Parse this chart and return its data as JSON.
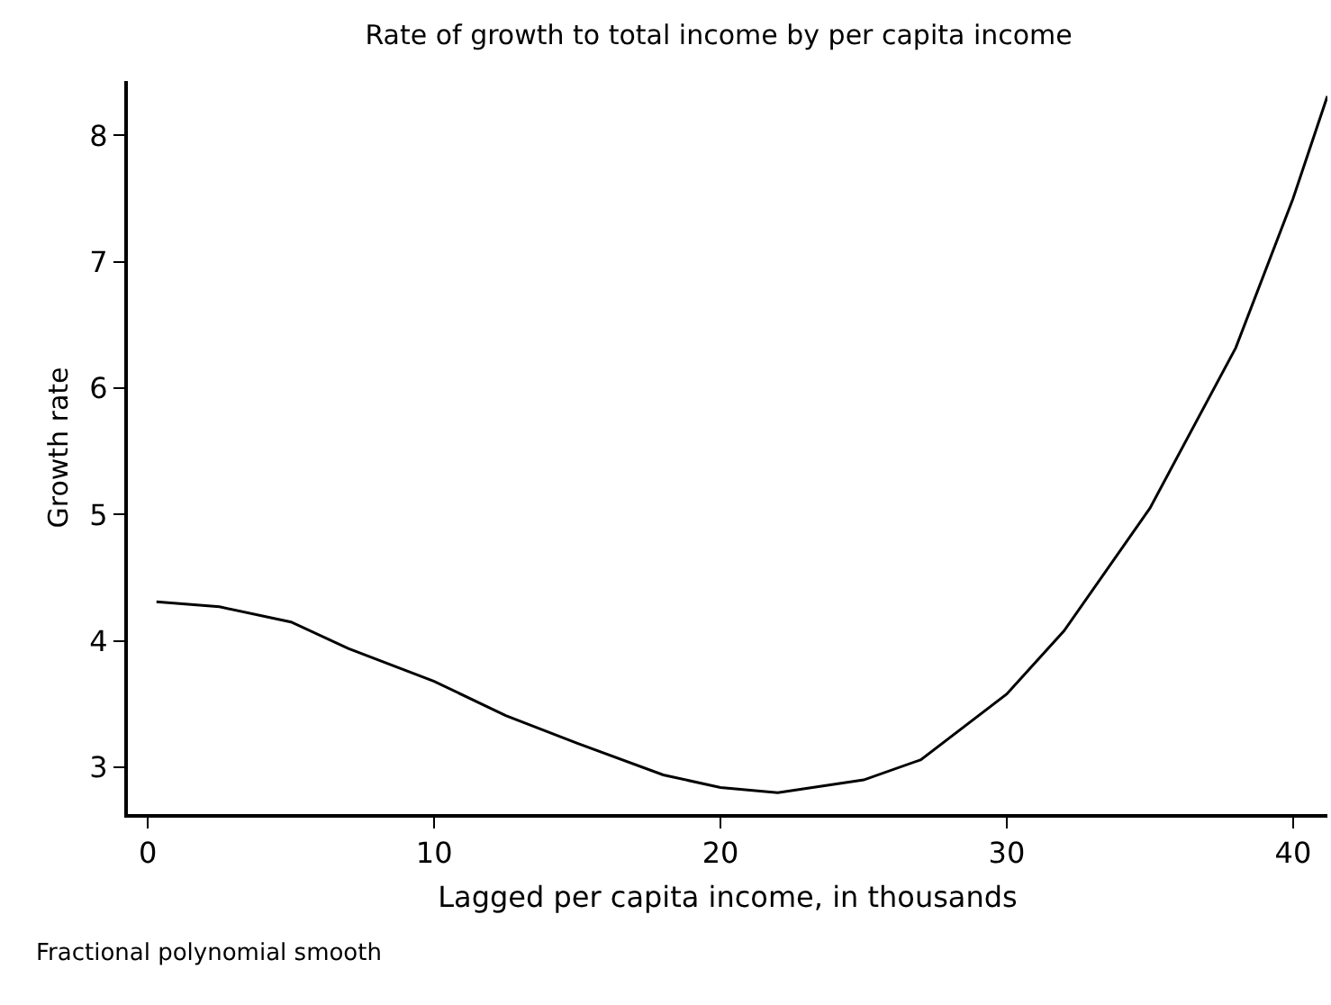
{
  "chart_data": {
    "type": "line",
    "title": "Rate of growth to total income by per capita income",
    "xlabel": "Lagged per capita income, in thousands",
    "ylabel": "Growth rate",
    "annotations": [
      "Fractional polynomial smooth"
    ],
    "series": [
      {
        "color": "#000000",
        "x": [
          0.3,
          2.5,
          5,
          7,
          10,
          12.5,
          15,
          18,
          20,
          22,
          25,
          27,
          30,
          32,
          35,
          38,
          40,
          41.2
        ],
        "values": [
          4.31,
          4.27,
          4.15,
          3.94,
          3.68,
          3.41,
          3.19,
          2.94,
          2.84,
          2.8,
          2.9,
          3.06,
          3.58,
          4.08,
          5.05,
          6.32,
          7.5,
          8.31
        ]
      }
    ],
    "xlim": [
      -0.7,
      41.2
    ],
    "ylim": [
      2.63,
      8.43
    ],
    "xticks": [
      0,
      10,
      20,
      30,
      40
    ],
    "yticks": [
      3,
      4,
      5,
      6,
      7,
      8
    ],
    "marker": "none",
    "line_style": "solid"
  }
}
